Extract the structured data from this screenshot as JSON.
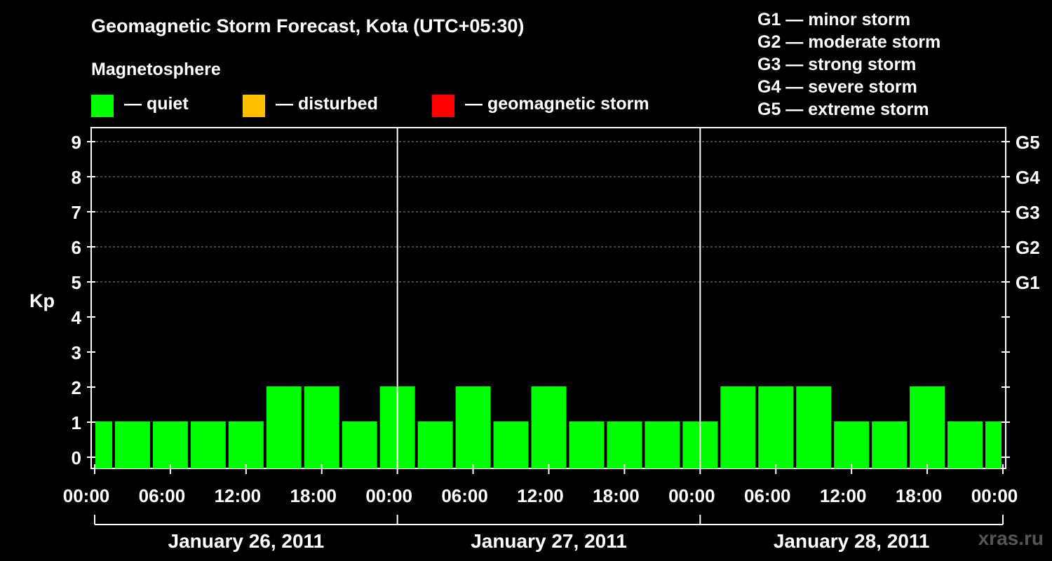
{
  "title": "Geomagnetic Storm Forecast, Kota (UTC+05:30)",
  "magnetosphere_label": "Magnetosphere",
  "legend": [
    {
      "label": "— quiet",
      "color": "#00ff00"
    },
    {
      "label": "— disturbed",
      "color": "#ffbf00"
    },
    {
      "label": "— geomagnetic storm",
      "color": "#ff0000"
    }
  ],
  "storm_levels": [
    "G1 — minor storm",
    "G2 — moderate storm",
    "G3 — strong storm",
    "G4 — severe storm",
    "G5 — extreme storm"
  ],
  "watermark": "xras.ru",
  "chart_data": {
    "type": "bar",
    "ylabel": "Kp",
    "ylim": [
      0,
      9
    ],
    "y_ticks": [
      "0",
      "1",
      "2",
      "3",
      "4",
      "5",
      "6",
      "7",
      "8",
      "9"
    ],
    "right_ticks": [
      {
        "kp": 5,
        "label": "G1"
      },
      {
        "kp": 6,
        "label": "G2"
      },
      {
        "kp": 7,
        "label": "G3"
      },
      {
        "kp": 8,
        "label": "G4"
      },
      {
        "kp": 9,
        "label": "G5"
      }
    ],
    "x_ticks": [
      "00:00",
      "06:00",
      "12:00",
      "18:00",
      "00:00",
      "06:00",
      "12:00",
      "18:00",
      "00:00",
      "06:00",
      "12:00",
      "18:00",
      "00:00"
    ],
    "days": [
      "January 26, 2011",
      "January 27, 2011",
      "January 28, 2011"
    ],
    "interval_hours": 3,
    "first_bar_start_hour": -1.5,
    "values": [
      1,
      1,
      1,
      1,
      1,
      2,
      2,
      1,
      2,
      1,
      2,
      1,
      2,
      1,
      1,
      1,
      1,
      2,
      2,
      2,
      1,
      1,
      2,
      1,
      1
    ],
    "bar_color": "#00ff00",
    "grid": true
  }
}
